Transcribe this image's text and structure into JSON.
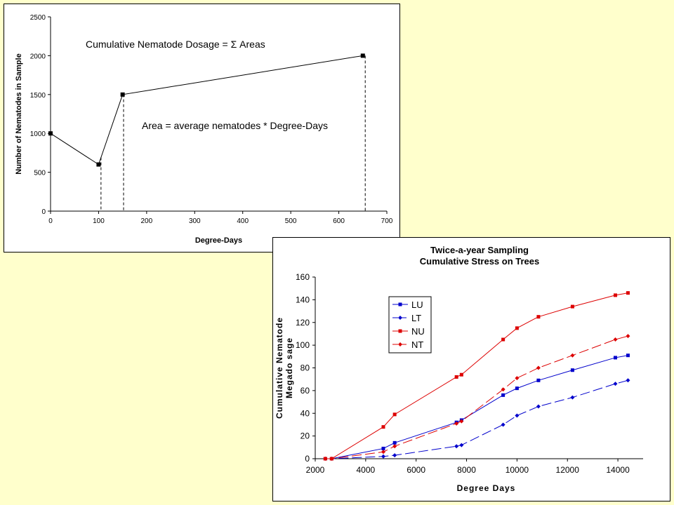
{
  "chart_data": [
    {
      "type": "line",
      "title": "",
      "xlabel": "Degree-Days",
      "ylabel": "Number of Nematodes in Sample",
      "xlim": [
        0,
        700
      ],
      "ylim": [
        0,
        2500
      ],
      "xticks": [
        0,
        100,
        200,
        300,
        400,
        500,
        600,
        700
      ],
      "yticks": [
        0,
        500,
        1000,
        1500,
        2000,
        2500
      ],
      "x": [
        0,
        100,
        150,
        650
      ],
      "series": [
        {
          "values": [
            1000,
            600,
            1500,
            2000
          ],
          "color": "#000000"
        }
      ],
      "drop_lines_at_x": [
        105,
        152,
        655
      ],
      "annotations": [
        "Cumulative Nematode Dosage = Σ Areas",
        "Area = average nematodes * Degree-Days"
      ],
      "grid": false
    },
    {
      "type": "line",
      "title": [
        "Twice-a-year Sampling",
        "Cumulative Stress on Trees"
      ],
      "xlabel": "Degree Days",
      "ylabel": [
        "Cumulative Nematode",
        "Megado sage"
      ],
      "xlim": [
        2000,
        15000
      ],
      "ylim": [
        0,
        160
      ],
      "xticks": [
        2000,
        4000,
        6000,
        8000,
        10000,
        12000,
        14000
      ],
      "yticks": [
        0,
        20,
        40,
        60,
        80,
        100,
        120,
        140,
        160
      ],
      "grid": false,
      "legend_position": "top-left",
      "series": [
        {
          "name": "LU",
          "color": "#0000CC",
          "marker": "square",
          "dash": "solid",
          "x": [
            2400,
            2650,
            4700,
            5150,
            7600,
            7800,
            9450,
            10000,
            10850,
            12200,
            13900,
            14400
          ],
          "values": [
            0,
            0,
            9,
            14,
            32,
            34,
            56,
            62,
            69,
            78,
            89,
            91
          ]
        },
        {
          "name": "LT",
          "color": "#0000CC",
          "marker": "diamond",
          "dash": "dashed",
          "x": [
            2400,
            2650,
            4700,
            5150,
            7600,
            7800,
            9450,
            10000,
            10850,
            12200,
            13900,
            14400
          ],
          "values": [
            0,
            0,
            2,
            3,
            11,
            12,
            30,
            38,
            46,
            54,
            66,
            69
          ]
        },
        {
          "name": "NU",
          "color": "#DD0000",
          "marker": "square",
          "dash": "solid",
          "x": [
            2400,
            2650,
            4700,
            5150,
            7600,
            7800,
            9450,
            10000,
            10850,
            12200,
            13900,
            14400
          ],
          "values": [
            0,
            0,
            28,
            39,
            72,
            74,
            105,
            115,
            125,
            134,
            144,
            146
          ]
        },
        {
          "name": "NT",
          "color": "#DD0000",
          "marker": "diamond",
          "dash": "dashed",
          "x": [
            2400,
            2650,
            4700,
            5150,
            7600,
            7800,
            9450,
            10000,
            10850,
            12200,
            13900,
            14400
          ],
          "values": [
            0,
            0,
            6,
            11,
            31,
            33,
            61,
            71,
            80,
            91,
            105,
            108
          ]
        }
      ]
    }
  ]
}
